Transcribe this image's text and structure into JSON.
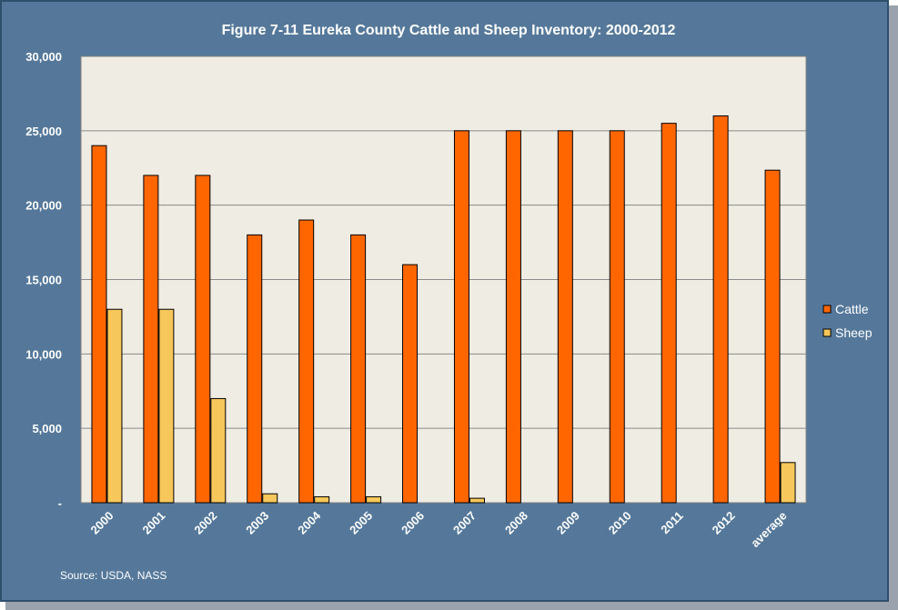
{
  "chart_data": {
    "type": "bar",
    "title": "Figure 7-11 Eureka County Cattle and Sheep Inventory: 2000-2012",
    "xlabel": "",
    "ylabel": "",
    "ylim": [
      0,
      30000
    ],
    "yticks": [
      {
        "value": 0,
        "label": "-"
      },
      {
        "value": 5000,
        "label": "5,000"
      },
      {
        "value": 10000,
        "label": "10,000"
      },
      {
        "value": 15000,
        "label": "15,000"
      },
      {
        "value": 20000,
        "label": "20,000"
      },
      {
        "value": 25000,
        "label": "25,000"
      },
      {
        "value": 30000,
        "label": "30,000"
      }
    ],
    "categories": [
      "2000",
      "2001",
      "2002",
      "2003",
      "2004",
      "2005",
      "2006",
      "2007",
      "2008",
      "2009",
      "2010",
      "2011",
      "2012",
      "average"
    ],
    "series": [
      {
        "name": "Cattle",
        "color": "#ff6600",
        "values": [
          24000,
          22000,
          22000,
          18000,
          19000,
          18000,
          16000,
          25000,
          25000,
          25000,
          25000,
          25500,
          26000,
          22350
        ]
      },
      {
        "name": "Sheep",
        "color": "#f6c75a",
        "values": [
          13000,
          13000,
          7000,
          600,
          400,
          400,
          0,
          300,
          0,
          0,
          0,
          0,
          0,
          2700
        ]
      }
    ],
    "grid": true,
    "legend_position": "right"
  },
  "source_note": "Source: USDA, NASS",
  "colors": {
    "frame_bg": "#55789a",
    "plot_bg": "#efece3",
    "gridline": "#8a8a8a"
  }
}
